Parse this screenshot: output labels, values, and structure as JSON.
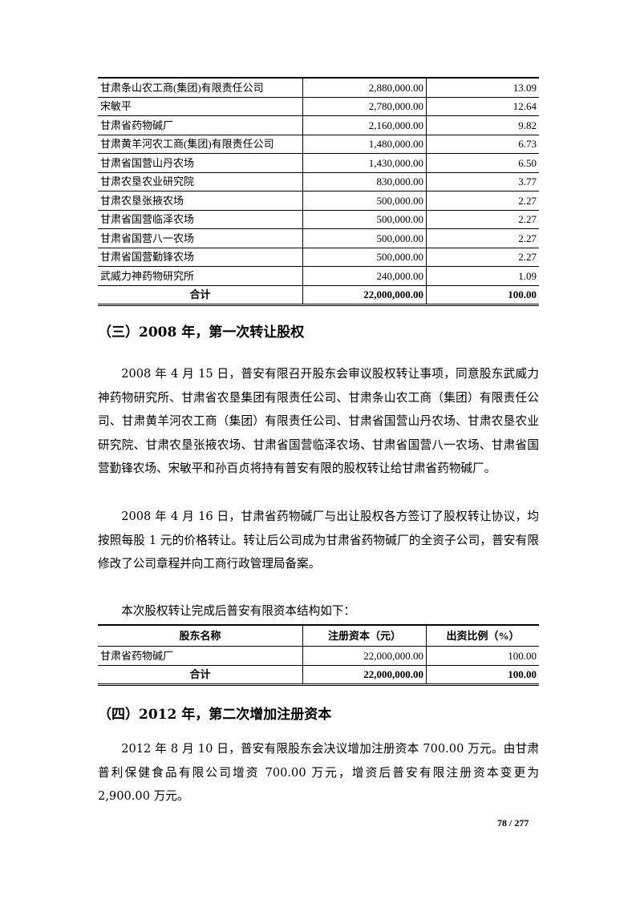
{
  "table1": {
    "rows": [
      {
        "name": "甘肃条山农工商(集团)有限责任公司",
        "capital": "2,880,000.00",
        "ratio": "13.09"
      },
      {
        "name": "宋敏平",
        "capital": "2,780,000.00",
        "ratio": "12.64"
      },
      {
        "name": "甘肃省药物碱厂",
        "capital": "2,160,000.00",
        "ratio": "9.82"
      },
      {
        "name": "甘肃黄羊河农工商(集团)有限责任公司",
        "capital": "1,480,000.00",
        "ratio": "6.73"
      },
      {
        "name": "甘肃省国营山丹农场",
        "capital": "1,430,000.00",
        "ratio": "6.50"
      },
      {
        "name": "甘肃农垦农业研究院",
        "capital": "830,000.00",
        "ratio": "3.77"
      },
      {
        "name": "甘肃农垦张掖农场",
        "capital": "500,000.00",
        "ratio": "2.27"
      },
      {
        "name": "甘肃省国营临泽农场",
        "capital": "500,000.00",
        "ratio": "2.27"
      },
      {
        "name": "甘肃省国营八一农场",
        "capital": "500,000.00",
        "ratio": "2.27"
      },
      {
        "name": "甘肃省国营勤锋农场",
        "capital": "500,000.00",
        "ratio": "2.27"
      },
      {
        "name": "武威力神药物研究所",
        "capital": "240,000.00",
        "ratio": "1.09"
      }
    ],
    "total": {
      "name": "合计",
      "capital": "22,000,000.00",
      "ratio": "100.00"
    }
  },
  "section3": {
    "heading": "（三）2008 年，第一次转让股权",
    "p1": "2008 年 4 月 15 日，普安有限召开股东会审议股权转让事项，同意股东武威力神药物研究所、甘肃省农垦集团有限责任公司、甘肃条山农工商（集团）有限责任公司、甘肃黄羊河农工商（集团）有限责任公司、甘肃省国营山丹农场、甘肃农垦农业研究院、甘肃农垦张掖农场、甘肃省国营临泽农场、甘肃省国营八一农场、甘肃省国营勤锋农场、宋敏平和孙百贞将持有普安有限的股权转让给甘肃省药物碱厂。",
    "p2": "2008 年 4 月 16 日，甘肃省药物碱厂与出让股权各方签订了股权转让协议，均按照每股 1 元的价格转让。转让后公司成为甘肃省药物碱厂的全资子公司，普安有限修改了公司章程并向工商行政管理局备案。",
    "p3": "本次股权转让完成后普安有限资本结构如下："
  },
  "table2": {
    "headers": [
      "股东名称",
      "注册资本（元）",
      "出资比例（%）"
    ],
    "rows": [
      {
        "name": "甘肃省药物碱厂",
        "capital": "22,000,000.00",
        "ratio": "100.00"
      }
    ],
    "total": {
      "name": "合计",
      "capital": "22,000,000.00",
      "ratio": "100.00"
    }
  },
  "section4": {
    "heading": "（四）2012 年，第二次增加注册资本",
    "p1": "2012 年 8 月 10 日，普安有限股东会决议增加注册资本 700.00 万元。由甘肃普利保健食品有限公司增资 700.00 万元，增资后普安有限注册资本变更为 2,900.00 万元。"
  },
  "page_number": "78 / 277"
}
